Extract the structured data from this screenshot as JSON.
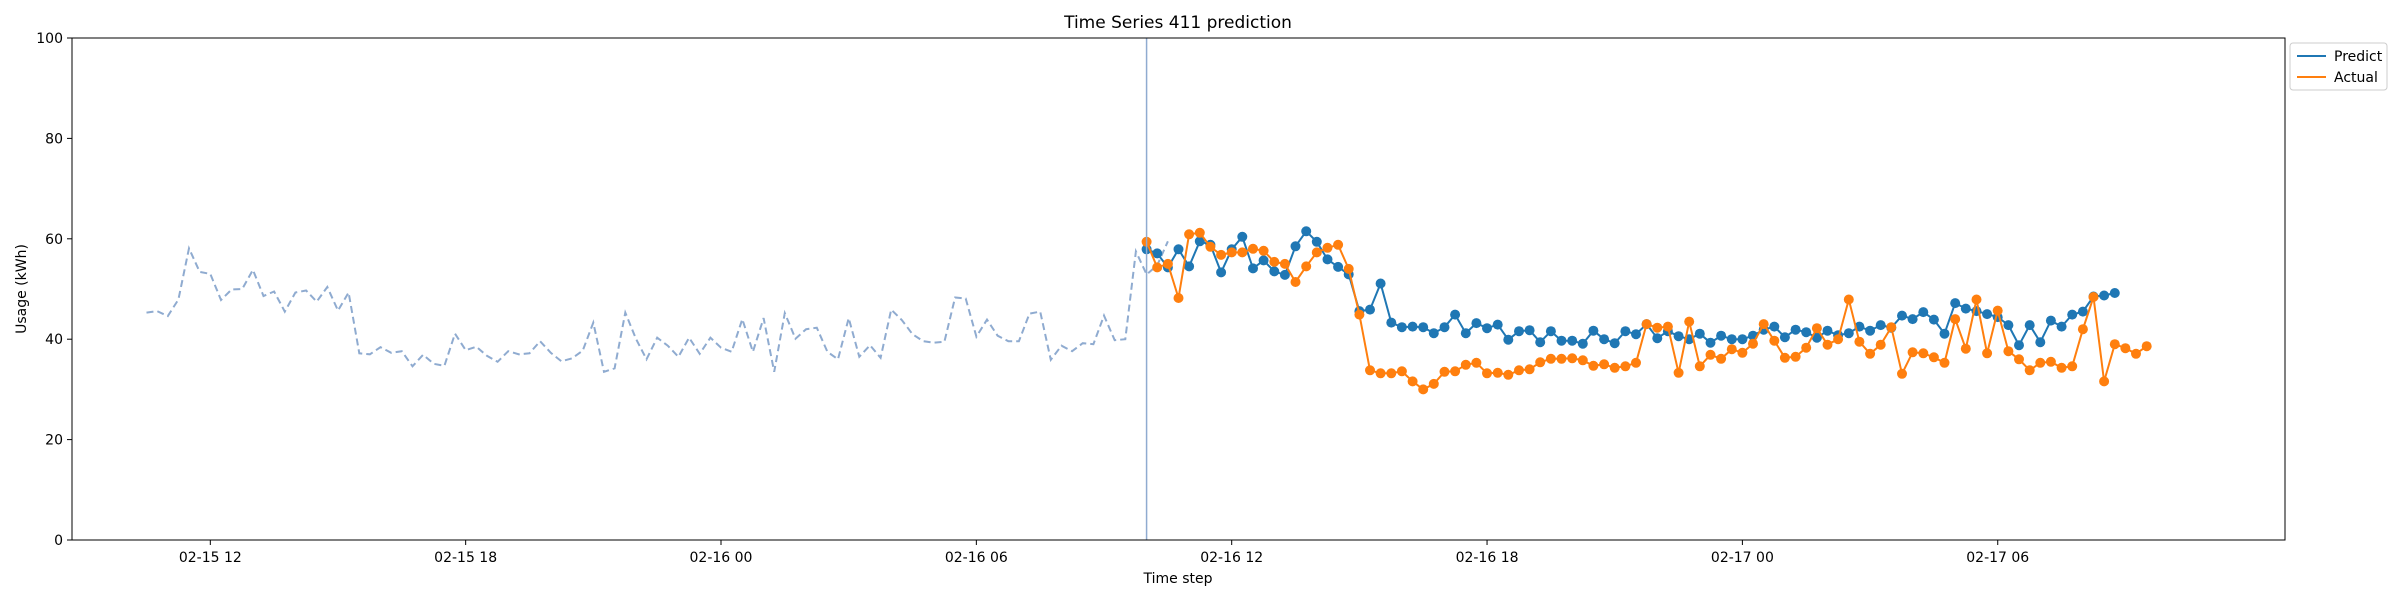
{
  "chart_data": {
    "type": "line",
    "title": "Time Series 411 prediction",
    "xlabel": "Time step",
    "ylabel": "Usage (kWh)",
    "ylim": [
      0,
      100
    ],
    "y_ticks": [
      "0",
      "20",
      "40",
      "60",
      "80",
      "100"
    ],
    "x_ticks": [
      "02-15 12",
      "02-15 18",
      "02-16 00",
      "02-16 06",
      "02-16 12",
      "02-16 18",
      "02-17 00",
      "02-17 06"
    ],
    "x_tick_dates": [
      "2016-02-15T12:00",
      "2016-02-15T18:00",
      "2016-02-16T00:00",
      "2016-02-16T06:00",
      "2016-02-16T12:00",
      "2016-02-16T18:00",
      "2016-02-17T00:00",
      "2016-02-17T06:00"
    ],
    "forecast_start": "2016-02-16T10:00",
    "legend_position": "top-right, outside plot",
    "grid": false,
    "colors": {
      "predict": "#1f77b4",
      "actual": "#ff7f0e",
      "history": "#8fabd0",
      "divider": "#8fabd0"
    },
    "series": [
      {
        "name": "",
        "style": "dashed",
        "start": "2016-02-15T10:30",
        "step_minutes": 15,
        "values": [
          45.3,
          45.6,
          44.6,
          47.9,
          58.1,
          53.4,
          53.0,
          47.8,
          49.9,
          50.0,
          53.8,
          48.6,
          49.5,
          45.5,
          49.3,
          49.7,
          47.5,
          50.4,
          45.7,
          49.3,
          37.2,
          37.0,
          38.4,
          37.3,
          37.6,
          34.6,
          36.9,
          35.1,
          34.7,
          41.1,
          37.8,
          38.5,
          36.7,
          35.5,
          37.6,
          37.0,
          37.2,
          39.6,
          37.3,
          35.6,
          36.2,
          37.7,
          43.3,
          33.5,
          34.2,
          45.3,
          40.1,
          36.0,
          40.3,
          38.7,
          36.5,
          40.3,
          37.1,
          40.3,
          38.3,
          37.5,
          44.0,
          37.5,
          44.2,
          33.5,
          45.2,
          40.1,
          42.0,
          42.3,
          37.5,
          36.0,
          44.2,
          36.5,
          38.8,
          36.3,
          45.9,
          43.8,
          41.0,
          39.6,
          39.3,
          39.5,
          48.3,
          48.1,
          40.5,
          43.9,
          40.7,
          39.6,
          39.6,
          45.1,
          45.5,
          35.9,
          38.7,
          37.6,
          39.2,
          39.0,
          44.7,
          39.8,
          40.0,
          57.5,
          52.9,
          54.7,
          59.5
        ]
      },
      {
        "name": "Predict",
        "style": "solid-marker",
        "start": "2016-02-16T10:00",
        "step_minutes": 15,
        "values": [
          57.9,
          57.1,
          54.3,
          57.9,
          54.5,
          59.5,
          58.8,
          53.3,
          57.9,
          60.4,
          54.1,
          55.7,
          53.5,
          52.8,
          58.5,
          61.5,
          59.4,
          55.9,
          54.4,
          52.9,
          45.6,
          45.9,
          51.1,
          43.3,
          42.4,
          42.5,
          42.4,
          41.2,
          42.4,
          44.9,
          41.2,
          43.2,
          42.2,
          42.9,
          39.9,
          41.6,
          41.8,
          39.4,
          41.6,
          39.7,
          39.7,
          39.1,
          41.7,
          40.0,
          39.2,
          41.6,
          41.0,
          43.0,
          40.2,
          41.6,
          40.6,
          40.0,
          41.1,
          39.3,
          40.7,
          40.0,
          40.0,
          40.7,
          41.9,
          42.5,
          40.4,
          41.9,
          41.4,
          40.3,
          41.7,
          40.8,
          41.2,
          42.5,
          41.7,
          42.8,
          42.3,
          44.7,
          44.0,
          45.4,
          43.9,
          41.1,
          47.2,
          46.1,
          45.6,
          45.0,
          44.4,
          42.8,
          38.8,
          42.8,
          39.4,
          43.7,
          42.5,
          44.9,
          45.5,
          48.5,
          48.7,
          49.2
        ]
      },
      {
        "name": "Actual",
        "style": "solid-marker",
        "start": "2016-02-16T10:00",
        "step_minutes": 15,
        "values": [
          59.4,
          54.3,
          55.0,
          48.2,
          60.9,
          61.2,
          58.4,
          56.8,
          57.3,
          57.3,
          58.0,
          57.6,
          55.4,
          55.0,
          51.4,
          54.5,
          57.3,
          58.2,
          58.8,
          54.0,
          44.9,
          33.8,
          33.2,
          33.2,
          33.6,
          31.6,
          30.0,
          31.1,
          33.5,
          33.6,
          34.9,
          35.3,
          33.2,
          33.3,
          32.9,
          33.8,
          34.0,
          35.4,
          36.1,
          36.1,
          36.2,
          35.8,
          34.7,
          35.0,
          34.3,
          34.6,
          35.3,
          43.0,
          42.3,
          42.5,
          33.3,
          43.5,
          34.6,
          36.9,
          36.1,
          38.0,
          37.3,
          39.1,
          43.0,
          39.7,
          36.3,
          36.5,
          38.3,
          42.2,
          38.9,
          40.0,
          47.9,
          39.5,
          37.1,
          38.9,
          42.4,
          33.1,
          37.4,
          37.2,
          36.4,
          35.3,
          44.0,
          38.1,
          47.9,
          37.2,
          45.7,
          37.6,
          36.0,
          33.8,
          35.3,
          35.5,
          34.3,
          34.6,
          42.0,
          48.4,
          31.6,
          39.0,
          38.2,
          37.1,
          38.6
        ]
      }
    ]
  }
}
